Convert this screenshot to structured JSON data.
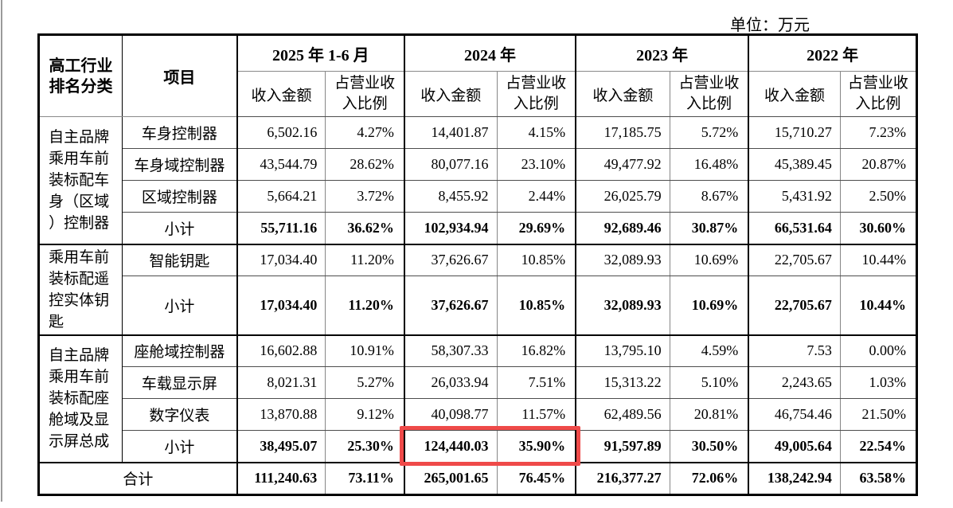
{
  "page": {
    "unit_label": "单位：万元"
  },
  "table": {
    "headers": {
      "category": "高工行业排名分类",
      "item": "项目",
      "revenue": "收入金额",
      "ratio": "占营业收入比例",
      "years": [
        "2025 年 1-6 月",
        "2024 年",
        "2023 年",
        "2022 年"
      ]
    },
    "groups": [
      {
        "category": "自主品牌乘用车前装标配车身（区域）控制器",
        "rows": [
          {
            "item": "车身控制器",
            "values": [
              "6,502.16",
              "4.27%",
              "14,401.87",
              "4.15%",
              "17,185.75",
              "5.72%",
              "15,710.27",
              "7.23%"
            ]
          },
          {
            "item": "车身域控制器",
            "values": [
              "43,544.79",
              "28.62%",
              "80,077.16",
              "23.10%",
              "49,477.92",
              "16.48%",
              "45,389.45",
              "20.87%"
            ]
          },
          {
            "item": "区域控制器",
            "values": [
              "5,664.21",
              "3.72%",
              "8,455.92",
              "2.44%",
              "26,025.79",
              "8.67%",
              "5,431.92",
              "2.50%"
            ]
          },
          {
            "item": "小计",
            "values": [
              "55,711.16",
              "36.62%",
              "102,934.94",
              "29.69%",
              "92,689.46",
              "30.87%",
              "66,531.64",
              "30.60%"
            ]
          }
        ]
      },
      {
        "category": "乘用车前装标配遥控实体钥匙",
        "rows": [
          {
            "item": "智能钥匙",
            "values": [
              "17,034.40",
              "11.20%",
              "37,626.67",
              "10.85%",
              "32,089.93",
              "10.69%",
              "22,705.67",
              "10.44%"
            ]
          },
          {
            "item": "小计",
            "values": [
              "17,034.40",
              "11.20%",
              "37,626.67",
              "10.85%",
              "32,089.93",
              "10.69%",
              "22,705.67",
              "10.44%"
            ]
          }
        ]
      },
      {
        "category": "自主品牌乘用车前装标配座舱域及显示屏总成",
        "rows": [
          {
            "item": "座舱域控制器",
            "values": [
              "16,602.88",
              "10.91%",
              "58,307.33",
              "16.82%",
              "13,795.10",
              "4.59%",
              "7.53",
              "0.00%"
            ]
          },
          {
            "item": "车载显示屏",
            "values": [
              "8,021.31",
              "5.27%",
              "26,033.94",
              "7.51%",
              "15,313.22",
              "5.10%",
              "2,243.65",
              "1.03%"
            ]
          },
          {
            "item": "数字仪表",
            "values": [
              "13,870.88",
              "9.12%",
              "40,098.77",
              "11.57%",
              "62,489.56",
              "20.81%",
              "46,754.46",
              "21.50%"
            ]
          },
          {
            "item": "小计",
            "values": [
              "38,495.07",
              "25.30%",
              "124,440.03",
              "35.90%",
              "91,597.89",
              "30.50%",
              "49,005.64",
              "22.54%"
            ]
          }
        ]
      }
    ],
    "total": {
      "label": "合计",
      "values": [
        "111,240.63",
        "73.11%",
        "265,001.65",
        "76.45%",
        "216,377.27",
        "72.06%",
        "138,242.94",
        "63.58%"
      ]
    }
  },
  "highlight": {
    "color": "#ef4a49",
    "group_index": 2,
    "row_item": "小计",
    "year": "2024 年",
    "highlighted_values": [
      "124,440.03",
      "35.90%"
    ]
  }
}
